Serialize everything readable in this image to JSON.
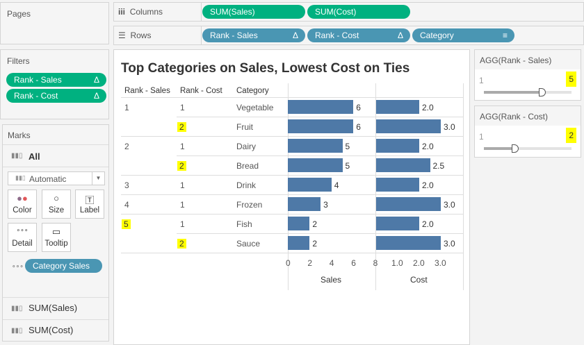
{
  "pages": {
    "title": "Pages"
  },
  "filters": {
    "title": "Filters",
    "items": [
      {
        "label": "Rank - Sales",
        "icon": "Δ"
      },
      {
        "label": "Rank - Cost",
        "icon": "Δ"
      }
    ]
  },
  "marks": {
    "title": "Marks",
    "all": "All",
    "type": "Automatic",
    "buttons": [
      "Color",
      "Size",
      "Label",
      "Detail",
      "Tooltip"
    ],
    "detail_pill": "Category Sales",
    "sub": [
      "SUM(Sales)",
      "SUM(Cost)"
    ]
  },
  "columns": {
    "label": "Columns",
    "pills": [
      "SUM(Sales)",
      "SUM(Cost)"
    ]
  },
  "rows": {
    "label": "Rows",
    "pills": [
      {
        "label": "Rank - Sales",
        "icon": "Δ"
      },
      {
        "label": "Rank - Cost",
        "icon": "Δ"
      },
      {
        "label": "Category",
        "icon": "sort-icon"
      }
    ]
  },
  "view": {
    "title": "Top Categories on Sales,  Lowest Cost on Ties",
    "headers": [
      "Rank - Sales",
      "Rank - Cost",
      "Category"
    ],
    "rows": [
      {
        "rank_sales": "1",
        "rank_cost": "1",
        "category": "Vegetable",
        "sales": 6,
        "cost": "2.0",
        "hl_s": false,
        "hl_c": false
      },
      {
        "rank_sales": "",
        "rank_cost": "2",
        "category": "Fruit",
        "sales": 6,
        "cost": "3.0",
        "hl_s": false,
        "hl_c": true
      },
      {
        "rank_sales": "2",
        "rank_cost": "1",
        "category": "Dairy",
        "sales": 5,
        "cost": "2.0",
        "hl_s": false,
        "hl_c": false
      },
      {
        "rank_sales": "",
        "rank_cost": "2",
        "category": "Bread",
        "sales": 5,
        "cost": "2.5",
        "hl_s": false,
        "hl_c": true
      },
      {
        "rank_sales": "3",
        "rank_cost": "1",
        "category": "Drink",
        "sales": 4,
        "cost": "2.0",
        "hl_s": false,
        "hl_c": false
      },
      {
        "rank_sales": "4",
        "rank_cost": "1",
        "category": "Frozen",
        "sales": 3,
        "cost": "3.0",
        "hl_s": false,
        "hl_c": false
      },
      {
        "rank_sales": "5",
        "rank_cost": "1",
        "category": "Fish",
        "sales": 2,
        "cost": "2.0",
        "hl_s": true,
        "hl_c": false
      },
      {
        "rank_sales": "",
        "rank_cost": "2",
        "category": "Sauce",
        "sales": 2,
        "cost": "3.0",
        "hl_s": false,
        "hl_c": true
      }
    ],
    "sales_ticks": [
      "0",
      "2",
      "4",
      "6",
      "8"
    ],
    "cost_ticks": [
      "1.0",
      "2.0",
      "3.0"
    ],
    "sales_axis": "Sales",
    "cost_axis": "Cost"
  },
  "sliders": [
    {
      "title": "AGG(Rank - Sales)",
      "min": "1",
      "value": "5",
      "fraction": 0.67
    },
    {
      "title": "AGG(Rank - Cost)",
      "min": "1",
      "value": "2",
      "fraction": 0.36
    }
  ],
  "colors": {
    "green": "#00b180",
    "blue": "#4a96b3",
    "bar": "#4e79a7",
    "highlight": "#ffff00"
  }
}
